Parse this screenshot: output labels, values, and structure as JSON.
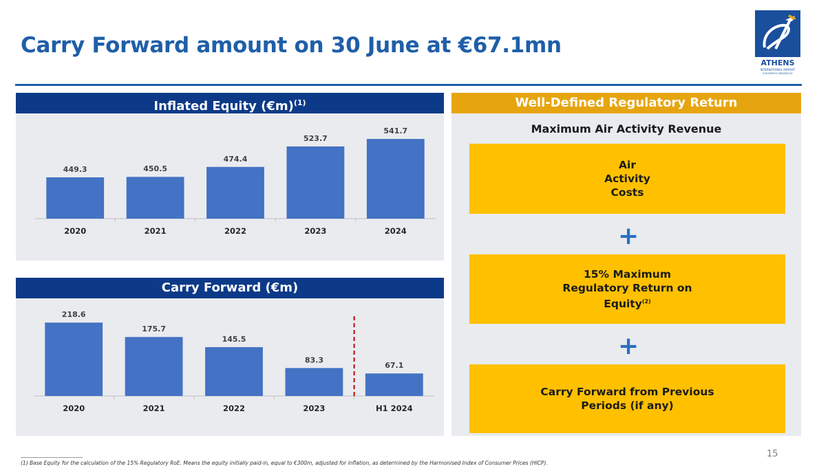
{
  "title": "Carry Forward amount on 30 June at €67.1mn",
  "logo": {
    "name": "ATHENS",
    "sub1": "INTERNATIONAL AIRPORT",
    "sub2": "ΕΛΕΥΘΕΡΙΟΣ ΒΕΝΙΖΕΛΟΣ"
  },
  "colors": {
    "title": "#1f5fa8",
    "header_blue": "#0d3a88",
    "header_gold": "#e6a50f",
    "bar": "#4472c4",
    "box": "#ffc000",
    "plus": "#2a6fc0",
    "divider": "#c00000"
  },
  "left_top": {
    "header": "Inflated Equity (€m)",
    "header_sup": "(1)"
  },
  "left_bottom": {
    "header": "Carry Forward (€m)"
  },
  "right": {
    "header": "Well-Defined Regulatory Return",
    "subtitle": "Maximum Air Activity Revenue",
    "box1": [
      "Air",
      "Activity",
      "Costs"
    ],
    "box2": [
      "15% Maximum",
      "Regulatory Return on",
      "Equity"
    ],
    "box2_sup": "(2)",
    "box3": [
      "Carry Forward from Previous",
      "Periods (if any)"
    ],
    "plus": "+"
  },
  "page_number": "15",
  "footnote": "(1)    Base Equity for the calculation of the 15% Regulatory RoE. Means the equity initially paid-in, equal to €300m, adjusted for inflation, as determined by the Harmonised Index of Consumer Prices (HICP).",
  "chart_data": [
    {
      "type": "bar",
      "title": "Inflated Equity (€m)",
      "categories": [
        "2020",
        "2021",
        "2022",
        "2023",
        "2024"
      ],
      "values": [
        449.3,
        450.5,
        474.4,
        523.7,
        541.7
      ],
      "data_labels": [
        "449.3",
        "450.5",
        "474.4",
        "523.7",
        "541.7"
      ],
      "ylim": [
        350,
        570
      ],
      "grid": false
    },
    {
      "type": "bar",
      "title": "Carry Forward (€m)",
      "categories": [
        "2020",
        "2021",
        "2022",
        "2023",
        "H1 2024"
      ],
      "values": [
        218.6,
        175.7,
        145.5,
        83.3,
        67.1
      ],
      "data_labels": [
        "218.6",
        "175.7",
        "145.5",
        "83.3",
        "67.1"
      ],
      "ylim": [
        0,
        260
      ],
      "grid": false,
      "divider_before": "H1 2024"
    }
  ]
}
